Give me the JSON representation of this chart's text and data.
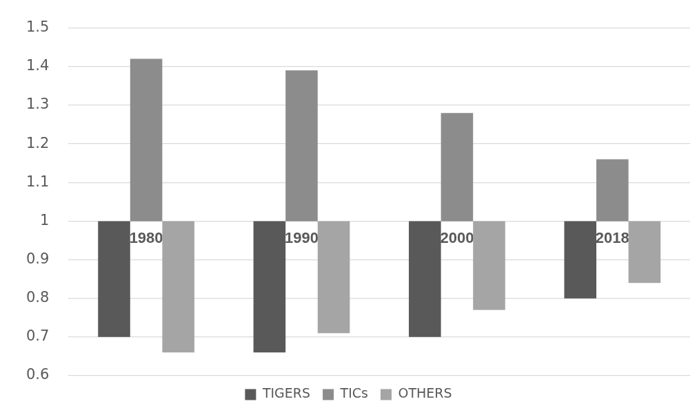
{
  "chart_data": {
    "type": "bar",
    "categories": [
      "1980",
      "1990",
      "2000",
      "2018"
    ],
    "series": [
      {
        "name": "TIGERS",
        "color": "#595959",
        "base": [
          1,
          1,
          1,
          1
        ],
        "values": [
          -0.3,
          -0.34,
          -0.3,
          -0.2
        ]
      },
      {
        "name": "TICs",
        "color": "#8c8c8c",
        "base": [
          1,
          1,
          1,
          1
        ],
        "values": [
          0.42,
          0.39,
          0.28,
          0.16
        ]
      },
      {
        "name": "OTHERS",
        "color": "#a5a5a5",
        "base": [
          1,
          1,
          1,
          1
        ],
        "values": [
          -0.34,
          -0.29,
          -0.23,
          -0.16
        ]
      }
    ],
    "ylim": [
      0.6,
      1.5
    ],
    "yticks": [
      0.6,
      0.7,
      0.8,
      0.9,
      1,
      1.1,
      1.2,
      1.3,
      1.4,
      1.5
    ],
    "grid": "y",
    "legend": "bottom"
  }
}
